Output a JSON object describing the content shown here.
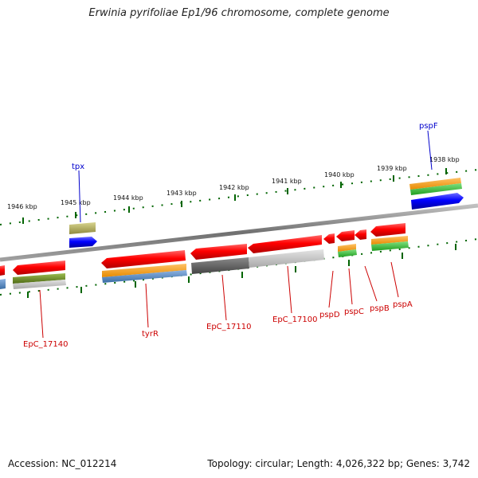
{
  "title": "Erwinia pyrifoliae Ep1/96 chromosome, complete genome",
  "footer": {
    "accession": "Accession: NC_012214",
    "summary": "Topology: circular; Length: 4,026,322 bp; Genes: 3,742"
  },
  "scale_labels": [
    "1946 kbp",
    "1945 kbp",
    "1944 kbp",
    "1943 kbp",
    "1942 kbp",
    "1941 kbp",
    "1940 kbp",
    "1939 kbp",
    "1938 kbp"
  ],
  "gene_labels": {
    "tpx": "tpx",
    "pspF": "pspF",
    "EpC_17140": "EpC_17140",
    "tyrR": "tyrR",
    "EpC_17110": "EpC_17110",
    "EpC_17100": "EpC_17100",
    "pspD": "pspD",
    "pspC": "pspC",
    "pspB": "pspB",
    "pspA": "pspA"
  },
  "colors": {
    "gene": "#ff0000",
    "rna_orange": "#ff9900",
    "rna_green": "#33cc33",
    "protein_blue": "#0000ff",
    "cds_steel": "#4a7fbf",
    "dark_gray": "#555555",
    "light_gray": "#c8c8c8",
    "olive": "#6b8e23",
    "khaki": "#b5b060",
    "tick_green": "#006400",
    "label_red": "#cc0000",
    "label_blue": "#0000cc",
    "backbone": "#808080"
  }
}
